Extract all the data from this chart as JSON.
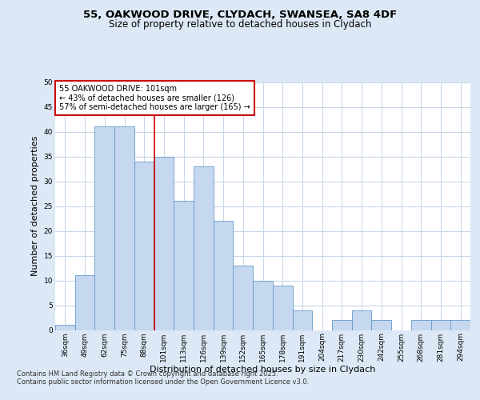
{
  "title_line1": "55, OAKWOOD DRIVE, CLYDACH, SWANSEA, SA8 4DF",
  "title_line2": "Size of property relative to detached houses in Clydach",
  "xlabel": "Distribution of detached houses by size in Clydach",
  "ylabel": "Number of detached properties",
  "categories": [
    "36sqm",
    "49sqm",
    "62sqm",
    "75sqm",
    "88sqm",
    "101sqm",
    "113sqm",
    "126sqm",
    "139sqm",
    "152sqm",
    "165sqm",
    "178sqm",
    "191sqm",
    "204sqm",
    "217sqm",
    "230sqm",
    "242sqm",
    "255sqm",
    "268sqm",
    "281sqm",
    "294sqm"
  ],
  "values": [
    1,
    11,
    41,
    41,
    34,
    35,
    26,
    33,
    22,
    13,
    10,
    9,
    4,
    0,
    2,
    4,
    2,
    0,
    2,
    2,
    2
  ],
  "bar_color": "#c5d8ef",
  "bar_edge_color": "#6699cc",
  "vline_color": "#cc0000",
  "annotation_text": "55 OAKWOOD DRIVE: 101sqm\n← 43% of detached houses are smaller (126)\n57% of semi-detached houses are larger (165) →",
  "annotation_box_color": "#ffffff",
  "annotation_box_edge": "#cc0000",
  "ylim": [
    0,
    50
  ],
  "yticks": [
    0,
    5,
    10,
    15,
    20,
    25,
    30,
    35,
    40,
    45,
    50
  ],
  "fig_bg_color": "#dce8f5",
  "plot_bg_color": "#ffffff",
  "grid_color": "#c8d8e8",
  "footer_line1": "Contains HM Land Registry data © Crown copyright and database right 2025.",
  "footer_line2": "Contains public sector information licensed under the Open Government Licence v3.0.",
  "title_fontsize": 9.5,
  "subtitle_fontsize": 8.5,
  "axis_label_fontsize": 8,
  "tick_fontsize": 6.5,
  "annotation_fontsize": 7,
  "footer_fontsize": 6
}
